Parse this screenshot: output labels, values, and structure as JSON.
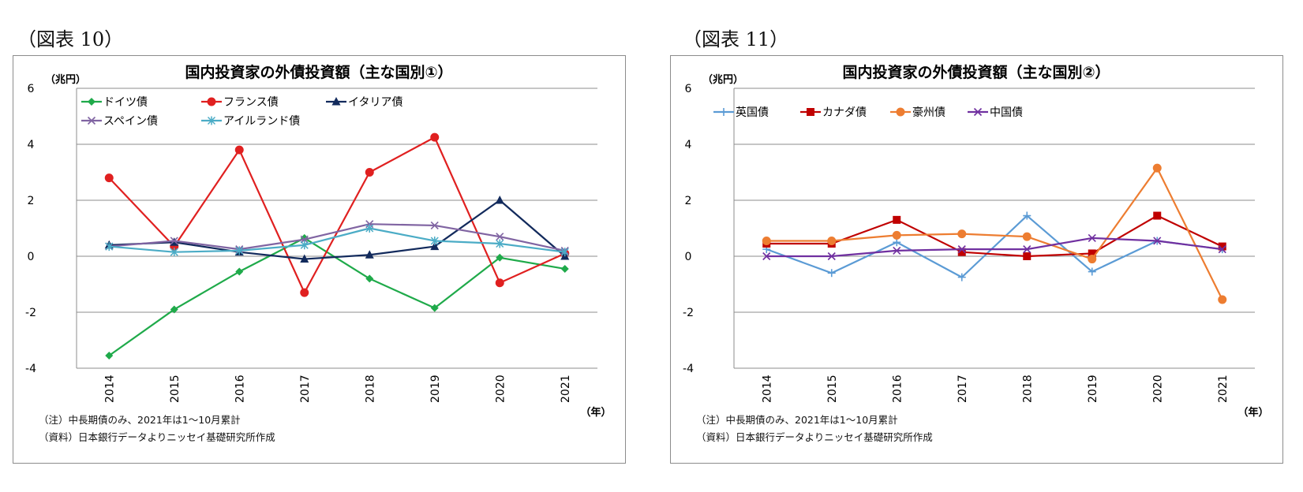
{
  "panels": [
    {
      "figure_label": "（図表 10）",
      "unit_label": "（兆円）",
      "year_unit": "（年）",
      "note": "（注）中長期債のみ、2021年は1～10月累計",
      "source": "（資料）日本銀行データよりニッセイ基礎研究所作成",
      "chart_data": {
        "type": "line",
        "title": "国内投資家の外債投資額（主な国別①）",
        "xlabel": "（年）",
        "ylabel": "（兆円）",
        "categories": [
          "2014",
          "2015",
          "2016",
          "2017",
          "2018",
          "2019",
          "2020",
          "2021"
        ],
        "ylim": [
          -4,
          6
        ],
        "yticks": [
          -4,
          -2,
          0,
          2,
          4,
          6
        ],
        "grid": true,
        "series": [
          {
            "name": "ドイツ債",
            "color": "#1faa4a",
            "marker": "diamond",
            "values": [
              -3.55,
              -1.9,
              -0.55,
              0.65,
              -0.8,
              -1.85,
              -0.05,
              -0.45
            ]
          },
          {
            "name": "フランス債",
            "color": "#e02020",
            "marker": "circle",
            "values": [
              2.8,
              0.35,
              3.8,
              -1.3,
              3.0,
              4.25,
              -0.95,
              0.1
            ]
          },
          {
            "name": "イタリア債",
            "color": "#122a5c",
            "marker": "triangle",
            "values": [
              0.4,
              0.5,
              0.15,
              -0.1,
              0.05,
              0.35,
              2.0,
              0.0
            ]
          },
          {
            "name": "スペイン債",
            "color": "#8064a2",
            "marker": "x",
            "values": [
              0.35,
              0.55,
              0.25,
              0.6,
              1.15,
              1.1,
              0.7,
              0.2
            ]
          },
          {
            "name": "アイルランド債",
            "color": "#4bacc6",
            "marker": "asterisk",
            "values": [
              0.35,
              0.15,
              0.2,
              0.4,
              1.0,
              0.55,
              0.45,
              0.15
            ]
          }
        ]
      }
    },
    {
      "figure_label": "（図表 11）",
      "unit_label": "（兆円）",
      "year_unit": "（年）",
      "note": "（注）中長期債のみ、2021年は1～10月累計",
      "source": "（資料）日本銀行データよりニッセイ基礎研究所作成",
      "chart_data": {
        "type": "line",
        "title": "国内投資家の外債投資額（主な国別②）",
        "xlabel": "（年）",
        "ylabel": "（兆円）",
        "categories": [
          "2014",
          "2015",
          "2016",
          "2017",
          "2018",
          "2019",
          "2020",
          "2021"
        ],
        "ylim": [
          -4,
          6
        ],
        "yticks": [
          -4,
          -2,
          0,
          2,
          4,
          6
        ],
        "grid": true,
        "series": [
          {
            "name": "英国債",
            "color": "#5b9bd5",
            "marker": "plus",
            "values": [
              0.25,
              -0.6,
              0.5,
              -0.75,
              1.45,
              -0.55,
              0.55,
              0.25
            ]
          },
          {
            "name": "カナダ債",
            "color": "#c00000",
            "marker": "square",
            "values": [
              0.45,
              0.45,
              1.3,
              0.15,
              0.0,
              0.1,
              1.45,
              0.35
            ]
          },
          {
            "name": "豪州債",
            "color": "#ed7d31",
            "marker": "circle",
            "values": [
              0.55,
              0.55,
              0.75,
              0.8,
              0.7,
              -0.1,
              3.15,
              -1.55
            ]
          },
          {
            "name": "中国債",
            "color": "#7030a0",
            "marker": "x",
            "values": [
              0.0,
              0.0,
              0.2,
              0.25,
              0.25,
              0.65,
              0.55,
              0.25
            ]
          }
        ]
      }
    }
  ]
}
